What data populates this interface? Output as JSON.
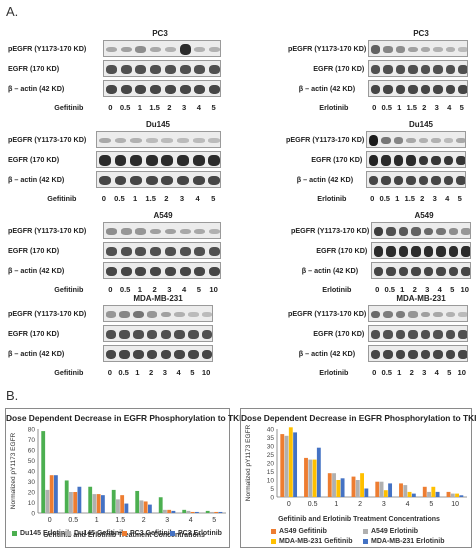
{
  "figure": {
    "section_a": "A.",
    "section_b": "B."
  },
  "panels": [
    {
      "id": "pc3-gefitinib",
      "title": "PC3",
      "rows": [
        "pEGFR (Y1173-170 KD)",
        "EGFR (170 KD)",
        "β – actin (42 KD)"
      ],
      "drug": "Gefitinib",
      "doses": [
        "0",
        "0.5",
        "1",
        "1.5",
        "2",
        "3",
        "4",
        "5"
      ],
      "band_intensity": [
        [
          0.2,
          0.25,
          0.35,
          0.2,
          0.15,
          0.9,
          0.15,
          0.15
        ],
        [
          0.7,
          0.7,
          0.7,
          0.7,
          0.7,
          0.7,
          0.7,
          0.7
        ],
        [
          0.75,
          0.75,
          0.75,
          0.75,
          0.75,
          0.75,
          0.75,
          0.75
        ]
      ]
    },
    {
      "id": "pc3-erlotinib",
      "title": "PC3",
      "rows": [
        "pEGFR (Y1173-170 KD)",
        "EGFR (170 KD)",
        "β – actin (42 KD)"
      ],
      "drug": "Erlotinib",
      "doses": [
        "0",
        "0.5",
        "1",
        "1.5",
        "2",
        "3",
        "4",
        "5"
      ],
      "band_intensity": [
        [
          0.6,
          0.4,
          0.35,
          0.25,
          0.2,
          0.15,
          0.15,
          0.1
        ],
        [
          0.7,
          0.7,
          0.7,
          0.7,
          0.7,
          0.7,
          0.7,
          0.7
        ],
        [
          0.75,
          0.75,
          0.75,
          0.75,
          0.75,
          0.75,
          0.75,
          0.75
        ]
      ]
    },
    {
      "id": "du145-gefitinib",
      "title": "Du145",
      "rows": [
        "pEGFR (Y1173-170 KD)",
        "EGFR (170 KD)",
        "β – actin (42 KD)"
      ],
      "drug": "Gefitinib",
      "doses": [
        "0",
        "0.5",
        "1",
        "1.5",
        "2",
        "3",
        "4",
        "5"
      ],
      "band_intensity": [
        [
          0.2,
          0.15,
          0.15,
          0.1,
          0.1,
          0.1,
          0.1,
          0.1
        ],
        [
          0.9,
          0.9,
          0.9,
          0.9,
          0.9,
          0.9,
          0.9,
          0.9
        ],
        [
          0.75,
          0.75,
          0.75,
          0.75,
          0.75,
          0.75,
          0.75,
          0.75
        ]
      ]
    },
    {
      "id": "du145-erlotinib",
      "title": "Du145",
      "rows": [
        "pEGFR (Y1173-170 KD)",
        "EGFR (170 KD)",
        "β – actin (42 KD)"
      ],
      "drug": "Erlotinib",
      "doses": [
        "0",
        "0.5",
        "1",
        "1.5",
        "2",
        "3",
        "4",
        "5"
      ],
      "band_intensity": [
        [
          1.0,
          0.5,
          0.4,
          0.2,
          0.15,
          0.15,
          0.1,
          0.2
        ],
        [
          0.95,
          0.9,
          0.9,
          0.9,
          0.85,
          0.85,
          0.85,
          0.85
        ],
        [
          0.75,
          0.75,
          0.75,
          0.75,
          0.75,
          0.75,
          0.75,
          0.75
        ]
      ]
    },
    {
      "id": "a549-gefitinib",
      "title": "A549",
      "rows": [
        "pEGFR (Y1173-170 KD)",
        "EGFR (170 KD)",
        "β – actin (42 KD)"
      ],
      "drug": "Gefitinib",
      "doses": [
        "0",
        "0.5",
        "1",
        "2",
        "3",
        "4",
        "5",
        "10"
      ],
      "band_intensity": [
        [
          0.35,
          0.3,
          0.3,
          0.25,
          0.25,
          0.2,
          0.2,
          0.15
        ],
        [
          0.7,
          0.7,
          0.7,
          0.7,
          0.7,
          0.7,
          0.7,
          0.7
        ],
        [
          0.75,
          0.75,
          0.75,
          0.75,
          0.75,
          0.75,
          0.75,
          0.75
        ]
      ]
    },
    {
      "id": "a549-erlotinib",
      "title": "A549",
      "rows": [
        "pEGFR (Y1173-170 KD)",
        "EGFR (170 KD)",
        "β – actin (42 KD)"
      ],
      "drug": "Erlotinib",
      "doses": [
        "0",
        "0.5",
        "1",
        "2",
        "3",
        "4",
        "5",
        "10"
      ],
      "band_intensity": [
        [
          0.8,
          0.7,
          0.65,
          0.6,
          0.55,
          0.5,
          0.35,
          0.3
        ],
        [
          0.9,
          0.9,
          0.9,
          0.9,
          0.9,
          0.9,
          0.9,
          0.9
        ],
        [
          0.75,
          0.75,
          0.75,
          0.75,
          0.75,
          0.75,
          0.75,
          0.75
        ]
      ]
    },
    {
      "id": "mda-gefitinib",
      "title": "MDA-MB-231",
      "rows": [
        "pEGFR (Y1173-170 KD)",
        "EGFR (170 KD)",
        "β – actin (42 KD)"
      ],
      "drug": "Gefitinib",
      "doses": [
        "0",
        "0.5",
        "1",
        "2",
        "3",
        "4",
        "5",
        "10"
      ],
      "band_intensity": [
        [
          0.3,
          0.4,
          0.5,
          0.3,
          0.25,
          0.15,
          0.1,
          0.1
        ],
        [
          0.7,
          0.7,
          0.7,
          0.7,
          0.7,
          0.7,
          0.7,
          0.7
        ],
        [
          0.75,
          0.75,
          0.75,
          0.75,
          0.75,
          0.75,
          0.75,
          0.75
        ]
      ]
    },
    {
      "id": "mda-erlotinib",
      "title": "MDA-MB-231",
      "rows": [
        "pEGFR (Y1173-170 KD)",
        "EGFR (170 KD)",
        "β – actin (42 KD)"
      ],
      "drug": "Erlotinib",
      "doses": [
        "0",
        "0.5",
        "1",
        "2",
        "3",
        "4",
        "5",
        "10"
      ],
      "band_intensity": [
        [
          0.55,
          0.45,
          0.45,
          0.3,
          0.25,
          0.2,
          0.15,
          0.1
        ],
        [
          0.7,
          0.7,
          0.7,
          0.7,
          0.7,
          0.7,
          0.7,
          0.7
        ],
        [
          0.75,
          0.75,
          0.75,
          0.75,
          0.75,
          0.75,
          0.75,
          0.75
        ]
      ]
    }
  ],
  "chart_data": [
    {
      "type": "bar",
      "title": "Dose Dependent Decrease in EGFR Phosphorylation to TKIs",
      "ylabel": "Normalized pY1173 EGFR",
      "xlabel": "Gefitinib and Erlotinib Treatment Concentrations",
      "ylim": [
        0,
        80
      ],
      "yticks": [
        "0",
        "10",
        "20",
        "30",
        "40",
        "50",
        "60",
        "70",
        "80"
      ],
      "categories": [
        "0",
        "0.5",
        "1",
        "1.5",
        "2",
        "3",
        "4",
        "5"
      ],
      "grid": false,
      "legend_position": "bottom",
      "series": [
        {
          "name": "Du145 Erlotinib",
          "color": "#4caf50",
          "values": [
            78,
            31,
            25,
            22,
            21,
            15,
            3,
            2
          ]
        },
        {
          "name": "Du145 Gefitinib",
          "color": "#b0b0b0",
          "values": [
            22,
            20,
            18,
            13,
            12,
            3,
            2,
            1
          ]
        },
        {
          "name": "PC3 Gefitinib",
          "color": "#ed7d31",
          "values": [
            36,
            20,
            18,
            17,
            11,
            3,
            1,
            1
          ]
        },
        {
          "name": "PC3 Erlotinib",
          "color": "#4472c4",
          "values": [
            36,
            25,
            17,
            9,
            8,
            2,
            1,
            1
          ]
        }
      ]
    },
    {
      "type": "bar",
      "title": "Dose Dependent Decrease in EGFR Phosphorylation to TKIs",
      "ylabel": "Normalized pY1173 EGFR",
      "xlabel": "Gefitinib and Erlotinib Treatment Concentrations",
      "ylim": [
        0,
        40
      ],
      "yticks": [
        "0",
        "5",
        "10",
        "15",
        "20",
        "25",
        "30",
        "35",
        "40"
      ],
      "categories": [
        "0",
        "0.5",
        "1",
        "2",
        "3",
        "4",
        "5",
        "10"
      ],
      "grid": false,
      "legend_position": "bottom",
      "series": [
        {
          "name": "AS49 Gefitinib",
          "color": "#ed7d31",
          "values": [
            37,
            23,
            14,
            12,
            9,
            8,
            6,
            3
          ]
        },
        {
          "name": "A549 Erlotinib",
          "color": "#b0b0b0",
          "values": [
            36,
            22,
            14,
            10,
            9,
            7,
            3,
            2
          ]
        },
        {
          "name": "MDA-MB-231 Gefitinib",
          "color": "#ffc000",
          "values": [
            41,
            22,
            10,
            14,
            4,
            3,
            6,
            2
          ]
        },
        {
          "name": "MDA-MB-231 Erlotinib",
          "color": "#4472c4",
          "values": [
            38,
            29,
            11,
            5,
            8,
            2,
            3,
            1
          ]
        }
      ]
    }
  ]
}
